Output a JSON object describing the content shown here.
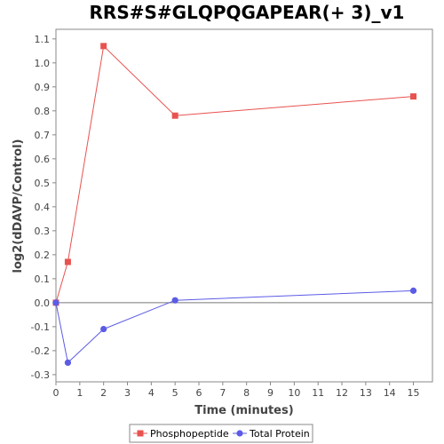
{
  "chart_data": {
    "type": "line",
    "title": "RRS#S#GLQPQGAPEAR(+ 3)_v1",
    "xlabel": "Time (minutes)",
    "ylabel": "log2(dDAVP/Control)",
    "xlim": [
      0,
      15.8
    ],
    "ylim": [
      -0.33,
      1.14
    ],
    "xticks": [
      0,
      1,
      2,
      3,
      4,
      5,
      6,
      7,
      8,
      9,
      10,
      11,
      12,
      13,
      14,
      15
    ],
    "yticks": [
      -0.3,
      -0.2,
      -0.1,
      0.0,
      0.1,
      0.2,
      0.3,
      0.4,
      0.5,
      0.6,
      0.7,
      0.8,
      0.9,
      1.0,
      1.1
    ],
    "ytick_labels": [
      "-0.3",
      "-0.2",
      "-0.1",
      "0.0",
      "0.1",
      "0.2",
      "0.3",
      "0.4",
      "0.5",
      "0.6",
      "0.7",
      "0.8",
      "0.9",
      "1.0",
      "1.1"
    ],
    "zero_line": true,
    "grid": false,
    "legend_position": "bottom",
    "series": [
      {
        "name": "Phosphopeptide",
        "color": "#e8524f",
        "marker": "square",
        "x": [
          0,
          0.5,
          2,
          5,
          15
        ],
        "y": [
          0.0,
          0.17,
          1.07,
          0.78,
          0.86
        ]
      },
      {
        "name": "Total Protein",
        "color": "#5b5be6",
        "marker": "circle",
        "x": [
          0,
          0.5,
          2,
          5,
          15
        ],
        "y": [
          0.0,
          -0.25,
          -0.11,
          0.01,
          0.05
        ]
      }
    ]
  }
}
